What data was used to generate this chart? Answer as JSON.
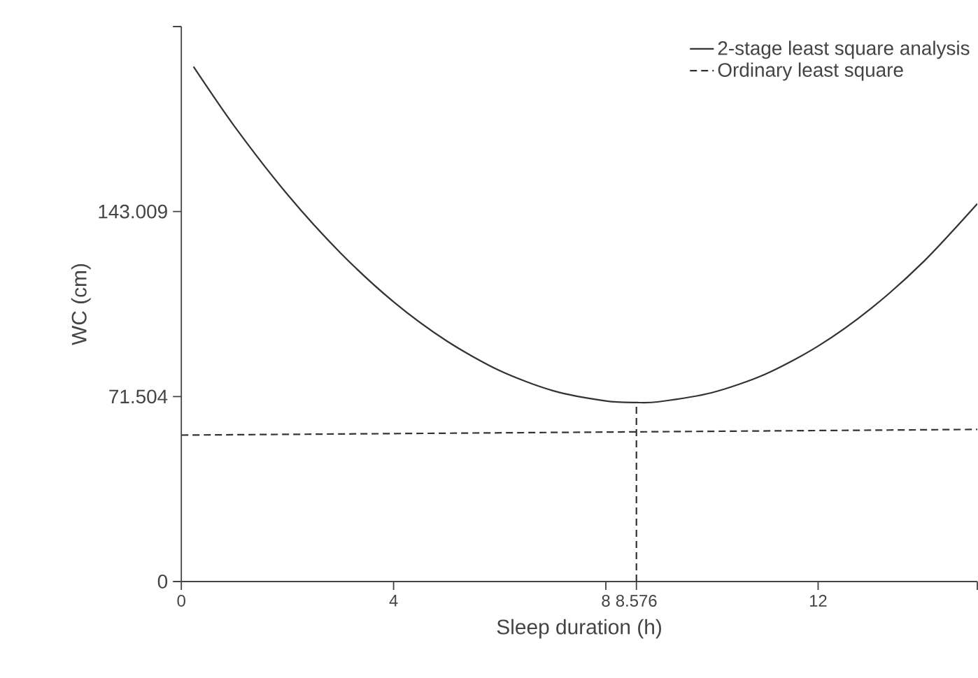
{
  "chart_data": {
    "type": "line",
    "xlabel": "Sleep duration (h)",
    "ylabel": "WC (cm)",
    "xlim": [
      0,
      15
    ],
    "ylim": [
      0,
      214.513
    ],
    "xticks": [
      0,
      4,
      8,
      8.576,
      12,
      {
        "value": 15,
        "label": null
      }
    ],
    "yticks": [
      0,
      71.504,
      143.009,
      {
        "value": 214.513,
        "label": null
      }
    ],
    "legend": "top right",
    "grid": false,
    "marker": "none",
    "series": [
      {
        "name": "2-stage least square analysis",
        "color": "#333333",
        "line_style": "solid",
        "x": [
          0.23,
          1,
          2,
          3,
          4,
          5,
          6,
          7,
          8,
          8.576,
          9,
          10,
          11,
          12,
          13,
          14,
          15
        ],
        "values": [
          199.0,
          176.0,
          149.6,
          127.0,
          108.1,
          93.0,
          81.5,
          73.8,
          69.8,
          69.2,
          69.5,
          73.0,
          80.1,
          91.0,
          105.6,
          123.9,
          146.0
        ]
      },
      {
        "name": "Ordinary least square",
        "color": "#333333",
        "line_style": "dashed",
        "x": [
          0,
          15
        ],
        "values": [
          56.6,
          58.8
        ]
      },
      {
        "color": "#333333",
        "line_style": "dashed",
        "x": [
          8.576,
          8.576
        ],
        "values": [
          0,
          69.2
        ]
      }
    ]
  }
}
